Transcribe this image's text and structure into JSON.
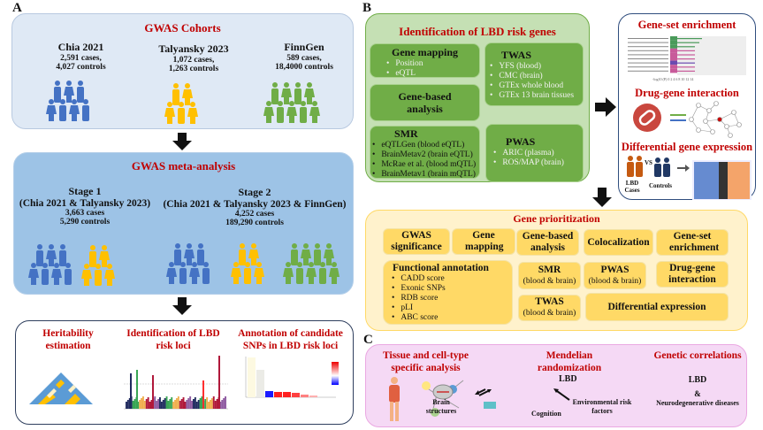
{
  "panels": {
    "a": "A",
    "b": "B",
    "c": "C"
  },
  "cohorts": {
    "title": "GWAS Cohorts",
    "items": [
      {
        "name": "Chia 2021",
        "cases": "2,591 cases,",
        "controls": "4,027 controls",
        "color": "#4472c4"
      },
      {
        "name": "Talyansky 2023",
        "cases": "1,072 cases,",
        "controls": "1,263 controls",
        "color": "#ffc000"
      },
      {
        "name": "FinnGen",
        "cases": "589 cases,",
        "controls": "18,4000 controls",
        "color": "#70ad47"
      }
    ]
  },
  "meta": {
    "title": "GWAS meta-analysis",
    "stage1": {
      "name": "Stage 1",
      "desc": "(Chia 2021 & Talyansky 2023)",
      "cases": "3,663 cases",
      "controls": "5,290 controls"
    },
    "stage2": {
      "name": "Stage 2",
      "desc": "(Chia 2021 & Talyansky 2023 & FinnGen)",
      "cases": "4,252 cases",
      "controls": "189,290 controls"
    }
  },
  "analyses": {
    "heritability": "Heritability estimation",
    "loci": "Identification of LBD risk loci",
    "annotation": "Annotation of candidate SNPs in LBD risk loci"
  },
  "risk_genes": {
    "title": "Identification of LBD risk genes",
    "gene_mapping": {
      "title": "Gene mapping",
      "items": [
        "Position",
        "eQTL"
      ]
    },
    "gene_based": "Gene-based analysis",
    "twas": {
      "title": "TWAS",
      "items": [
        "YFS (blood)",
        "CMC (brain)",
        "GTEx whole blood",
        "GTEx 13 brain tissues"
      ]
    },
    "smr": {
      "title": "SMR",
      "items": [
        "eQTLGen (blood eQTL)",
        "BrainMetav2 (brain eQTL)",
        "McRae et al. (blood mQTL)",
        "BrainMetav1 (brain mQTL)"
      ]
    },
    "pwas": {
      "title": "PWAS",
      "items": [
        "ARIC (plasma)",
        "ROS/MAP (brain)"
      ]
    }
  },
  "downstream": {
    "gene_set": "Gene-set enrichment",
    "drug_gene": "Drug-gene interaction",
    "diff_expr": "Differential gene expression",
    "cases_label": "LBD Cases",
    "vs": "VS",
    "controls_label": "Controls"
  },
  "prioritization": {
    "title": "Gene prioritization",
    "gwas_sig": "GWAS significance",
    "gene_mapping": "Gene mapping",
    "gene_based": "Gene-based analysis",
    "coloc": "Colocalization",
    "gene_set": "Gene-set enrichment",
    "functional": {
      "title": "Functional annotation",
      "items": [
        "CADD score",
        "Exonic SNPs",
        "RDB score",
        "pLI",
        "ABC score"
      ]
    },
    "smr": {
      "title": "SMR",
      "sub": "(blood & brain)"
    },
    "pwas": {
      "title": "PWAS",
      "sub": "(blood & brain)"
    },
    "drug_gene": "Drug-gene interaction",
    "twas": {
      "title": "TWAS",
      "sub": "(blood & brain)"
    },
    "diff_expr": "Differential expression"
  },
  "panel_c": {
    "tissue": "Tissue and cell-type specific analysis",
    "mr": {
      "title": "Mendelian randomization",
      "lbd": "LBD",
      "brain": "Brain structures",
      "cognition": "Cognition",
      "env": "Environmental risk factors"
    },
    "gc": {
      "title": "Genetic correlations",
      "lbd": "LBD",
      "amp": "&",
      "neuro": "Neurodegenerative diseases"
    }
  }
}
